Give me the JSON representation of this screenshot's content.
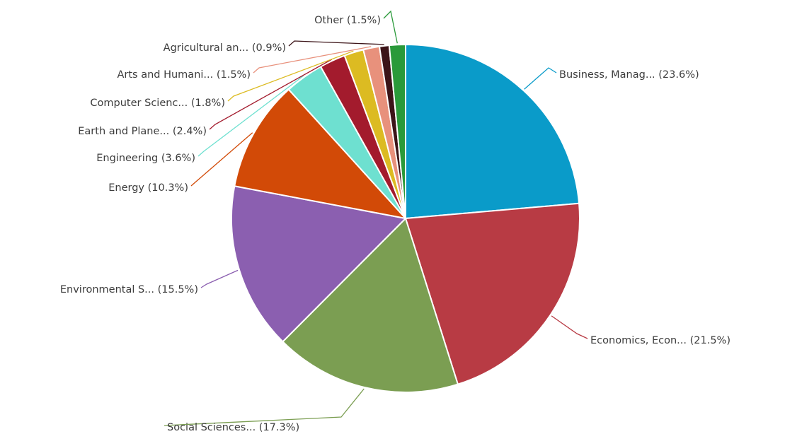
{
  "chart_data": {
    "type": "pie",
    "title": "",
    "start": "12 o'clock",
    "direction": "clockwise",
    "legend": "none",
    "slices": [
      {
        "label": "Business, Manag... (23.6%)",
        "value": 23.6,
        "color": "#0a9bc9"
      },
      {
        "label": "Economics, Econ... (21.5%)",
        "value": 21.5,
        "color": "#b83b44"
      },
      {
        "label": "Social Sciences... (17.3%)",
        "value": 17.3,
        "color": "#7b9e52"
      },
      {
        "label": "Environmental S... (15.5%)",
        "value": 15.5,
        "color": "#8b5fb0"
      },
      {
        "label": "Energy (10.3%)",
        "value": 10.3,
        "color": "#d24a07"
      },
      {
        "label": "Engineering (3.6%)",
        "value": 3.6,
        "color": "#6ee0d0"
      },
      {
        "label": "Earth and Plane... (2.4%)",
        "value": 2.4,
        "color": "#a31b2d"
      },
      {
        "label": "Computer Scienc... (1.8%)",
        "value": 1.8,
        "color": "#dcbb22"
      },
      {
        "label": "Arts and Humani... (1.5%)",
        "value": 1.5,
        "color": "#e8917c"
      },
      {
        "label": "Agricultural an... (0.9%)",
        "value": 0.9,
        "color": "#3c1418"
      },
      {
        "label": "Other (1.5%)",
        "value": 1.5,
        "color": "#2a9a3a"
      }
    ]
  }
}
